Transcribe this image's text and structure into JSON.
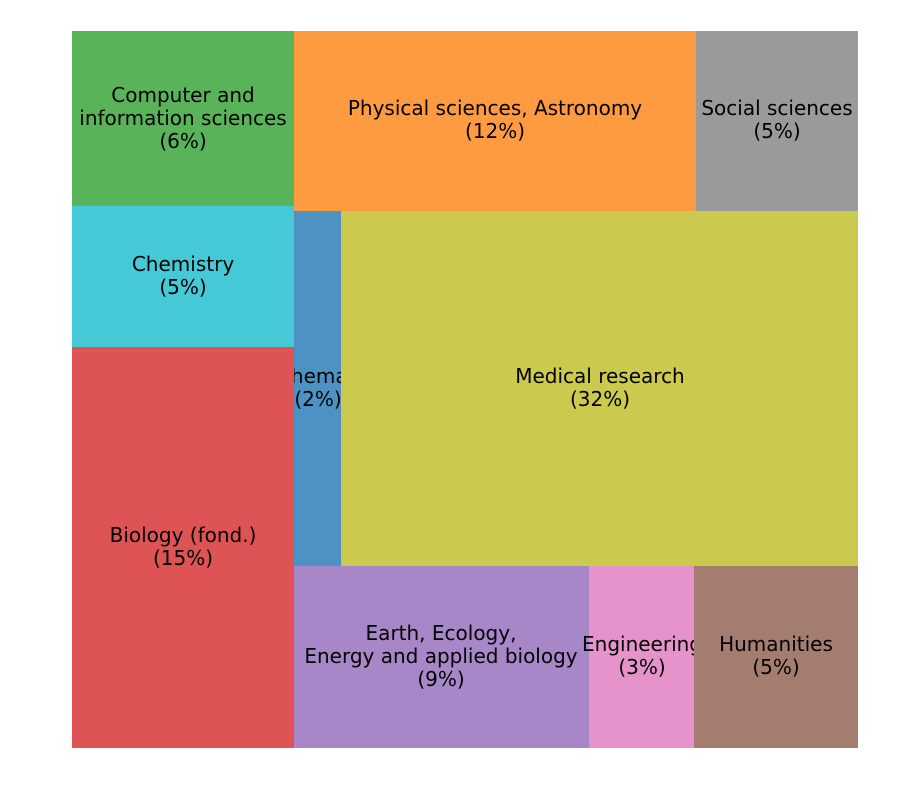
{
  "chart_data": {
    "type": "treemap",
    "title": "",
    "items": [
      {
        "name": "Computer and\ninformation sciences",
        "label": "(6%)",
        "value": 6,
        "color": "#59b359"
      },
      {
        "name": "Physical sciences, Astronomy",
        "label": "(12%)",
        "value": 12,
        "color": "#fe9a40"
      },
      {
        "name": "Social sciences",
        "label": "(5%)",
        "value": 5,
        "color": "#9a9a9a"
      },
      {
        "name": "Chemistry",
        "label": "(5%)",
        "value": 5,
        "color": "#46c9d6"
      },
      {
        "name": "Mathematics",
        "label": "(2%)",
        "value": 2,
        "color": "#4c93c3"
      },
      {
        "name": "Medical research",
        "label": "(32%)",
        "value": 32,
        "color": "#cbc94e"
      },
      {
        "name": "Biology (fond.)",
        "label": "(15%)",
        "value": 15,
        "color": "#de5354"
      },
      {
        "name": "Earth, Ecology,\nEnergy and applied biology",
        "label": "(9%)",
        "value": 9,
        "color": "#a887c9"
      },
      {
        "name": "Engineering",
        "label": "(3%)",
        "value": 3,
        "color": "#e793cb"
      },
      {
        "name": "Humanities",
        "label": "(5%)",
        "value": 5,
        "color": "#a57c70"
      }
    ]
  }
}
